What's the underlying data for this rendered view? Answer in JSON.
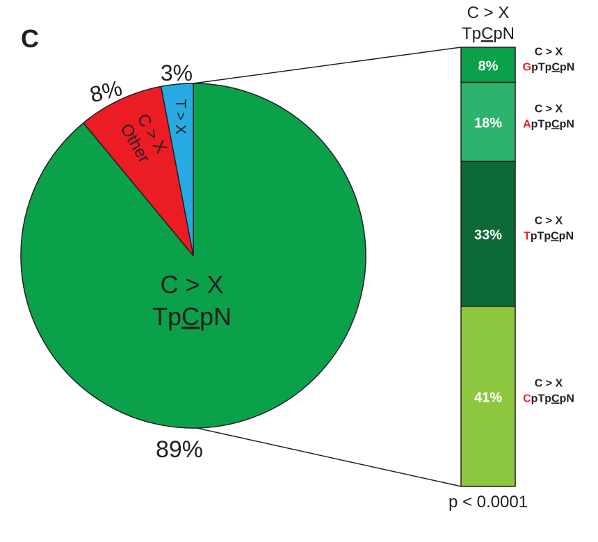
{
  "panel_label": "C",
  "chart_data": [
    {
      "type": "pie",
      "slices": [
        {
          "label_line1": "C > X",
          "label_line2": "TpCpN",
          "underline": "C",
          "value": 89,
          "pct_label": "89%",
          "color": "#0ba04a"
        },
        {
          "label_line1": "C > X",
          "label_line2": "Other",
          "value": 8,
          "pct_label": "8%",
          "color": "#ec1c24"
        },
        {
          "label_line1": "T > X",
          "label_line2": "",
          "value": 3,
          "pct_label": "3%",
          "color": "#26aae1"
        }
      ]
    },
    {
      "type": "bar",
      "stacked": true,
      "title_line1": "C > X",
      "title_line2": "TpCpN",
      "footnote": "p < 0.0001",
      "segments": [
        {
          "value": 8,
          "value_label": "8%",
          "label_line1": "C > X",
          "prefix": "G",
          "rest": "pTp",
          "underline": "C",
          "suffix": "pN",
          "color": "#0ba04a"
        },
        {
          "value": 18,
          "value_label": "18%",
          "label_line1": "C > X",
          "prefix": "A",
          "rest": "pTp",
          "underline": "C",
          "suffix": "pN",
          "color": "#2db36b"
        },
        {
          "value": 33,
          "value_label": "33%",
          "label_line1": "C > X",
          "prefix": "T",
          "rest": "pTp",
          "underline": "C",
          "suffix": "pN",
          "color": "#0b6a35"
        },
        {
          "value": 41,
          "value_label": "41%",
          "label_line1": "C > X",
          "prefix": "C",
          "rest": "pTp",
          "underline": "C",
          "suffix": "pN",
          "color": "#8dc63f"
        }
      ]
    }
  ],
  "colors": {
    "text": "#231f20",
    "accent_red": "#ec1c24",
    "white": "#ffffff"
  }
}
